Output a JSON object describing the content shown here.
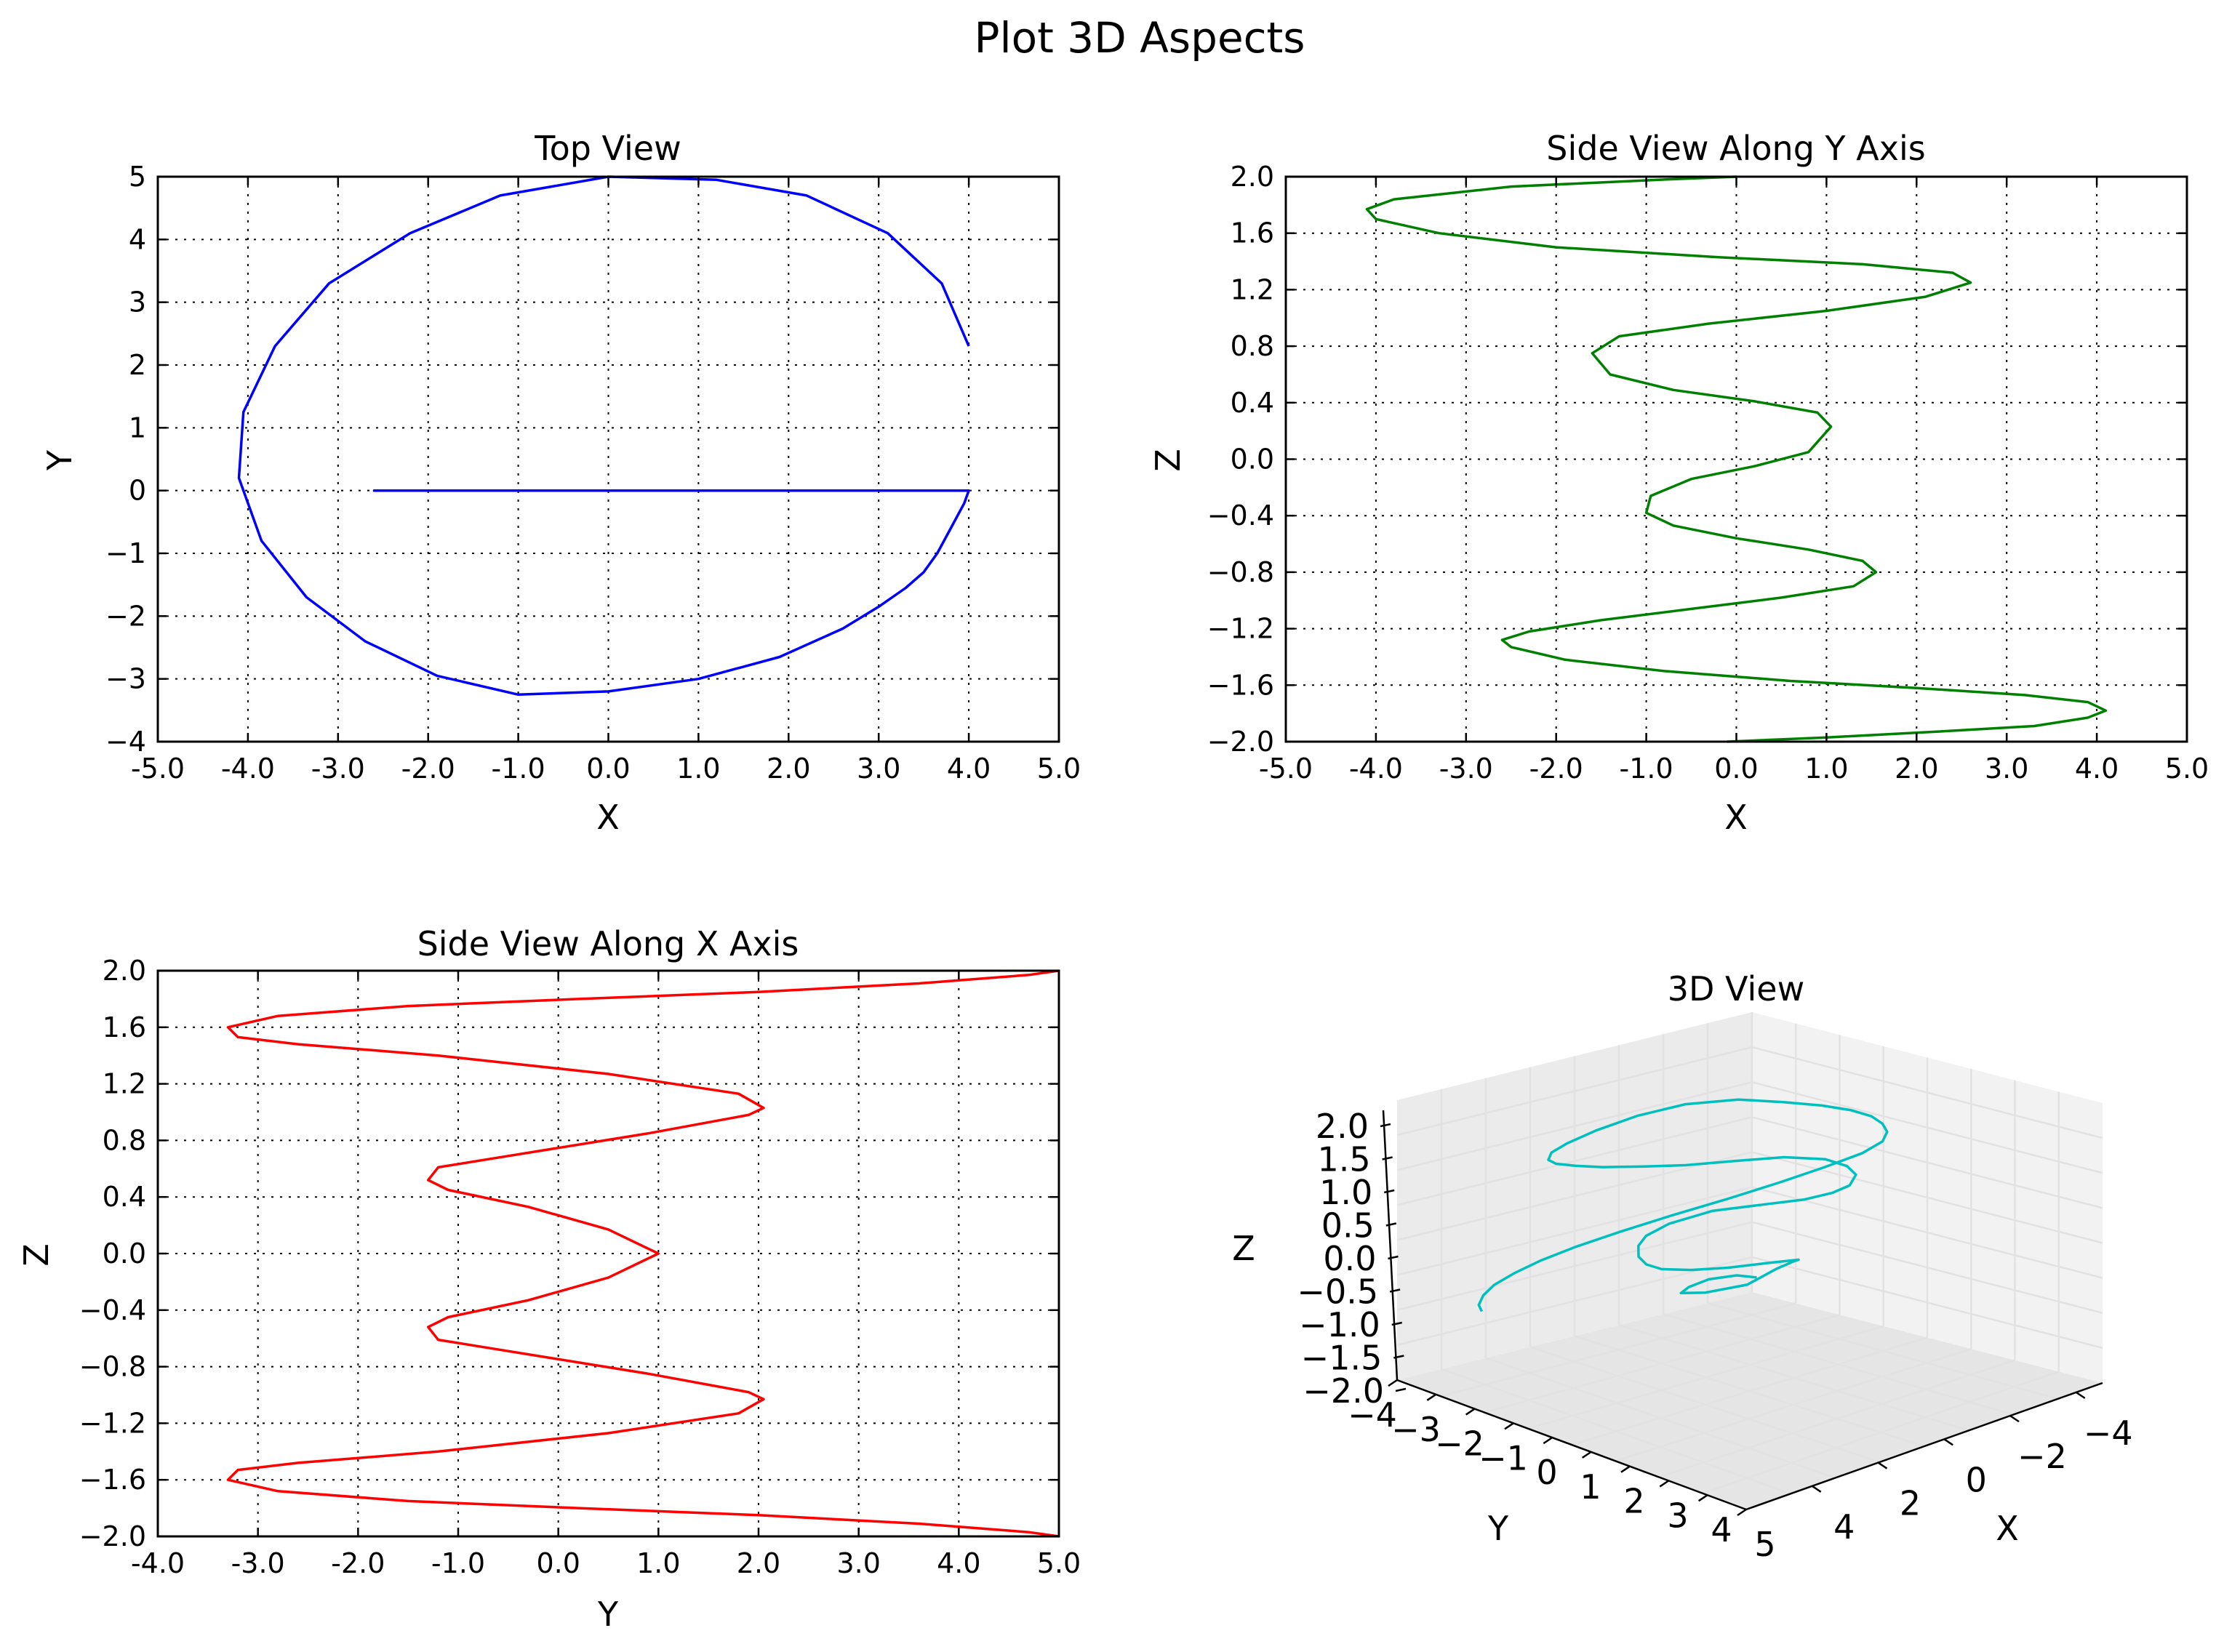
{
  "figure": {
    "title": "Plot 3D Aspects"
  },
  "chart_data": [
    {
      "type": "line",
      "id": "top-view",
      "title": "Top View",
      "xlabel": "X",
      "ylabel": "Y",
      "xlim": [
        -5,
        5
      ],
      "ylim": [
        -4,
        5
      ],
      "xticks": [
        -5,
        -4,
        -3,
        -2,
        -1,
        0,
        1,
        2,
        3,
        4,
        5
      ],
      "xtick_labels": [
        "-5.0",
        "-4.0",
        "-3.0",
        "-2.0",
        "-1.0",
        "0.0",
        "1.0",
        "2.0",
        "3.0",
        "4.0",
        "5.0"
      ],
      "yticks": [
        -4,
        -3,
        -2,
        -1,
        0,
        1,
        2,
        3,
        4,
        5
      ],
      "ytick_labels": [
        "−4",
        "−3",
        "−2",
        "−1",
        "0",
        "1",
        "2",
        "3",
        "4",
        "5"
      ],
      "grid": true,
      "color": "#0000ff",
      "series": [
        {
          "x": [
            4.0,
            3.7,
            3.1,
            2.2,
            1.2,
            0,
            -1.2,
            -2.2,
            -3.1,
            -3.7,
            -4.05,
            -4.1,
            -3.85,
            -3.35,
            -2.7,
            -1.9,
            -1.0,
            0,
            1.0,
            1.9,
            2.6,
            3.0,
            3.3,
            3.5,
            3.65,
            3.8,
            3.95,
            4.0,
            3.8,
            3.45,
            2.95,
            2.3,
            1.6,
            1.0,
            0.5,
            0.15,
            0,
            -0.15,
            -0.55,
            -1.1,
            -1.7,
            -2.25,
            -2.55,
            -2.6,
            -2.45,
            -2.05,
            -1.5,
            -0.85,
            -0.35,
            0,
            0.35,
            0.85,
            1.5,
            2.05,
            2.45,
            2.6,
            2.55,
            2.25,
            1.75,
            1.2,
            0.7,
            0.35,
            0,
            -0.35,
            -0.85,
            -1.35,
            -1.55,
            -1.55,
            -1.35,
            -0.95,
            -0.5,
            0,
            0.5,
            0.95,
            1.35,
            1.55,
            1.55,
            1.35,
            0.95,
            0.5,
            0.15,
            0,
            -0.25,
            -0.6,
            -0.9,
            -1.05,
            -0.95,
            -0.65,
            -0.3,
            0,
            0.3,
            0.65,
            0.95,
            1.05,
            0.95,
            0.65,
            0.3,
            0
          ],
          "y": [
            2.3,
            3.3,
            4.1,
            4.7,
            4.95,
            5.0,
            4.7,
            4.1,
            3.3,
            2.3,
            1.25,
            0.2,
            -0.8,
            -1.7,
            -2.4,
            -2.95,
            -3.25,
            -3.2,
            -3.0,
            -2.65,
            -2.2,
            -1.85,
            -1.55,
            -1.3,
            -1.0,
            -0.6,
            -0.2,
            0,
            0,
            0,
            0,
            0,
            0,
            0,
            0,
            0,
            0,
            0,
            0,
            0,
            0,
            0,
            0,
            0,
            0,
            0,
            0,
            0,
            0,
            0,
            0,
            0,
            0,
            0,
            0,
            0,
            0,
            0,
            0,
            0,
            0,
            0,
            0,
            0,
            0,
            0,
            0,
            0,
            0,
            0,
            0,
            0,
            0,
            0,
            0,
            0,
            0,
            0,
            0,
            0,
            0,
            0,
            0,
            0,
            0,
            0,
            0,
            0,
            0,
            0,
            0,
            0,
            0,
            0,
            0,
            0,
            0,
            0
          ]
        }
      ]
    },
    {
      "type": "line",
      "id": "side-view-y",
      "title": "Side View Along Y Axis",
      "xlabel": "X",
      "ylabel": "Z",
      "xlim": [
        -5,
        5
      ],
      "ylim": [
        -2,
        2
      ],
      "xticks": [
        -5,
        -4,
        -3,
        -2,
        -1,
        0,
        1,
        2,
        3,
        4,
        5
      ],
      "xtick_labels": [
        "-5.0",
        "-4.0",
        "-3.0",
        "-2.0",
        "-1.0",
        "0.0",
        "1.0",
        "2.0",
        "3.0",
        "4.0",
        "5.0"
      ],
      "yticks": [
        -2.0,
        -1.6,
        -1.2,
        -0.8,
        -0.4,
        0.0,
        0.4,
        0.8,
        1.2,
        1.6,
        2.0
      ],
      "ytick_labels": [
        "−2.0",
        "−1.6",
        "−1.2",
        "−0.8",
        "−0.4",
        "0.0",
        "0.4",
        "0.8",
        "1.2",
        "1.6",
        "2.0"
      ],
      "grid": true,
      "color": "#008000",
      "series": [
        {
          "x": [
            -0.1,
            1.0,
            2.2,
            3.3,
            3.9,
            4.1,
            3.9,
            3.2,
            2.0,
            0.6,
            -0.8,
            -1.9,
            -2.5,
            -2.6,
            -2.3,
            -1.5,
            -0.5,
            0.5,
            1.3,
            1.55,
            1.4,
            0.8,
            0.0,
            -0.7,
            -1.0,
            -0.95,
            -0.5,
            0.2,
            0.8,
            1.05,
            0.9,
            0.2,
            -0.7,
            -1.4,
            -1.6,
            -1.3,
            -0.3,
            1.0,
            2.1,
            2.6,
            2.4,
            1.4,
            -0.2,
            -2.0,
            -3.3,
            -4.0,
            -4.1,
            -3.8,
            -2.5,
            -0.8,
            0.0
          ],
          "y": [
            -2.0,
            -1.97,
            -1.93,
            -1.89,
            -1.83,
            -1.78,
            -1.72,
            -1.67,
            -1.62,
            -1.57,
            -1.5,
            -1.42,
            -1.33,
            -1.28,
            -1.22,
            -1.14,
            -1.06,
            -0.98,
            -0.9,
            -0.8,
            -0.72,
            -0.64,
            -0.56,
            -0.47,
            -0.38,
            -0.26,
            -0.14,
            -0.05,
            0.05,
            0.23,
            0.33,
            0.41,
            0.49,
            0.6,
            0.75,
            0.87,
            0.96,
            1.05,
            1.15,
            1.25,
            1.32,
            1.38,
            1.43,
            1.5,
            1.6,
            1.7,
            1.77,
            1.84,
            1.93,
            1.98,
            2.0
          ]
        }
      ]
    },
    {
      "type": "line",
      "id": "side-view-x",
      "title": "Side View Along X Axis",
      "xlabel": "Y",
      "ylabel": "Z",
      "xlim": [
        -4,
        5
      ],
      "ylim": [
        -2,
        2
      ],
      "xticks": [
        -4,
        -3,
        -2,
        -1,
        0,
        1,
        2,
        3,
        4,
        5
      ],
      "xtick_labels": [
        "-4.0",
        "-3.0",
        "-2.0",
        "-1.0",
        "0.0",
        "1.0",
        "2.0",
        "3.0",
        "4.0",
        "5.0"
      ],
      "yticks": [
        -2.0,
        -1.6,
        -1.2,
        -0.8,
        -0.4,
        0.0,
        0.4,
        0.8,
        1.2,
        1.6,
        2.0
      ],
      "ytick_labels": [
        "−2.0",
        "−1.6",
        "−1.2",
        "−0.8",
        "−0.4",
        "0.0",
        "0.4",
        "0.8",
        "1.2",
        "1.6",
        "2.0"
      ],
      "grid": true,
      "color": "#ff0000",
      "series": [
        {
          "x": [
            5.0,
            4.7,
            3.6,
            2.0,
            0.2,
            -1.5,
            -2.8,
            -3.3,
            -3.2,
            -2.6,
            -1.2,
            0.5,
            1.8,
            2.05,
            1.9,
            0.9,
            -0.5,
            -1.2,
            -1.3,
            -1.1,
            -0.3,
            0.5,
            1.0,
            0.5,
            -0.3,
            -1.1,
            -1.3,
            -1.2,
            -0.5,
            0.9,
            1.9,
            2.05,
            1.8,
            0.5,
            -1.2,
            -2.6,
            -3.2,
            -3.3,
            -2.8,
            -1.5,
            0.2,
            2.0,
            3.6,
            4.7,
            5.0
          ],
          "y": [
            -2.0,
            -1.97,
            -1.91,
            -1.85,
            -1.8,
            -1.75,
            -1.68,
            -1.6,
            -1.53,
            -1.48,
            -1.4,
            -1.27,
            -1.13,
            -1.03,
            -0.98,
            -0.85,
            -0.69,
            -0.61,
            -0.52,
            -0.45,
            -0.33,
            -0.17,
            0.0,
            0.17,
            0.33,
            0.45,
            0.52,
            0.61,
            0.69,
            0.85,
            0.98,
            1.03,
            1.13,
            1.27,
            1.4,
            1.48,
            1.53,
            1.6,
            1.68,
            1.75,
            1.8,
            1.85,
            1.91,
            1.97,
            2.0
          ]
        }
      ]
    },
    {
      "type": "line",
      "id": "view-3d",
      "title": "3D View",
      "xlabel": "X",
      "ylabel": "Y",
      "zlabel": "Z",
      "xtick_labels": [
        "−4",
        "−2",
        "0",
        "2",
        "4"
      ],
      "ytick_labels": [
        "−4",
        "−3",
        "−2",
        "−1",
        "0",
        "1",
        "2",
        "3",
        "4",
        "5"
      ],
      "ztick_labels": [
        "−2.0",
        "−1.5",
        "−1.0",
        "−0.5",
        "0.0",
        "0.5",
        "1.0",
        "1.5",
        "2.0"
      ],
      "color": "#00bfbf",
      "pane_colors": [
        "#f2f2f2",
        "#ebebeb",
        "#e5e5e5"
      ],
      "series": [
        {
          "x": [
            0.3,
            0.0,
            -0.45,
            -0.8,
            -0.95,
            -0.6,
            0.05,
            0.55,
            0.85,
            1.0,
            0.6,
            0.0,
            -0.55,
            -1.0,
            -1.25,
            -1.4,
            -1.45,
            -1.35,
            -1.0,
            -0.35,
            0.4,
            1.1,
            1.55,
            1.85,
            2.0,
            1.9,
            1.6,
            1.0,
            0.3,
            -0.5,
            -1.2,
            -1.8,
            -2.2,
            -2.5,
            -2.6,
            -2.55,
            -2.3,
            -1.85,
            -1.2,
            -0.45,
            0.4,
            1.15,
            1.8,
            2.3,
            2.65,
            2.85,
            2.95,
            2.9,
            2.6,
            2.0,
            1.3,
            0.5,
            -0.4,
            -1.2,
            -1.9,
            -2.45,
            -2.85,
            -3.15,
            -3.3,
            -3.35,
            -3.3
          ],
          "y": [
            0.0,
            0.05,
            0.05,
            0.0,
            -0.05,
            -0.15,
            -0.2,
            -0.15,
            -0.1,
            0.05,
            0.2,
            0.35,
            0.45,
            0.5,
            0.5,
            0.45,
            0.35,
            0.3,
            0.25,
            0.15,
            0.1,
            0.05,
            0.05,
            0.1,
            0.2,
            0.3,
            0.4,
            0.55,
            0.65,
            0.75,
            0.8,
            0.85,
            0.9,
            0.95,
            1.0,
            1.0,
            1.0,
            0.95,
            0.9,
            0.85,
            0.85,
            0.9,
            0.95,
            1.0,
            1.05,
            1.1,
            1.15,
            1.2,
            1.25,
            1.3,
            1.35,
            1.4,
            1.45,
            1.5,
            1.55,
            1.6,
            1.65,
            1.7,
            1.75,
            1.8,
            1.8
          ],
          "z": [
            0.05,
            0.1,
            0.1,
            0.05,
            0.0,
            -0.05,
            -0.05,
            0.05,
            0.1,
            0.15,
            0.2,
            0.25,
            0.3,
            0.35,
            0.4,
            0.45,
            0.5,
            0.55,
            0.6,
            0.62,
            0.6,
            0.58,
            0.6,
            0.65,
            0.75,
            0.85,
            0.95,
            1.05,
            1.1,
            1.15,
            1.2,
            1.25,
            1.3,
            1.35,
            1.4,
            1.45,
            1.5,
            1.55,
            1.6,
            1.62,
            1.6,
            1.55,
            1.5,
            1.45,
            1.4,
            1.35,
            1.3,
            1.25,
            1.2,
            1.15,
            1.1,
            1.05,
            1.0,
            0.95,
            0.9,
            0.85,
            0.8,
            0.75,
            0.7,
            0.65,
            0.6
          ]
        }
      ]
    }
  ]
}
